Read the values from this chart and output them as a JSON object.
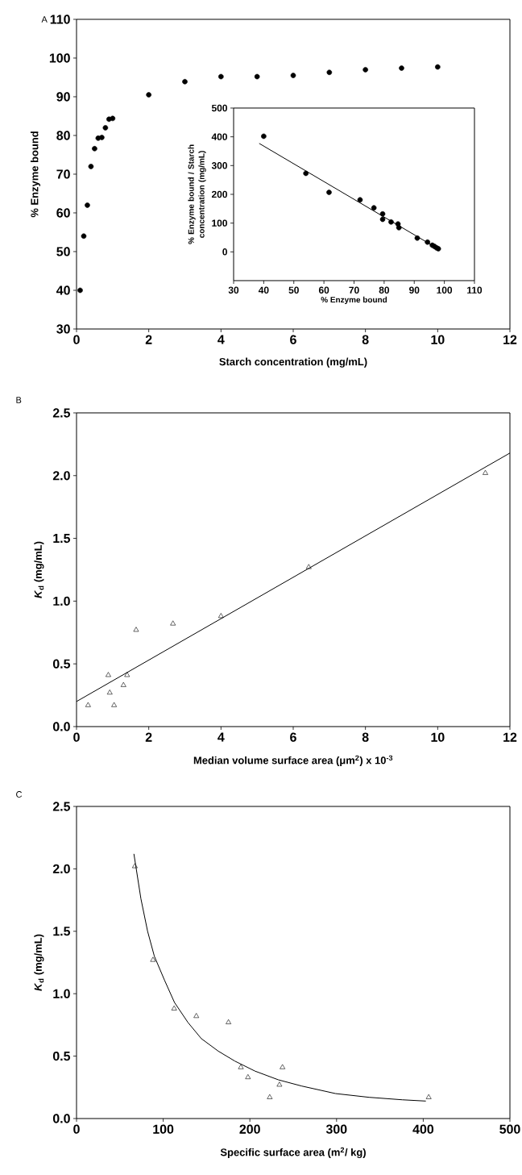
{
  "chart_data": [
    {
      "type": "scatter",
      "title": "A",
      "xlabel": "Starch concentration (mg/mL)",
      "ylabel": "% Enzyme bound",
      "xlim": [
        0,
        12
      ],
      "ylim": [
        30,
        110
      ],
      "xticks": [
        0,
        2,
        4,
        6,
        8,
        10,
        12
      ],
      "yticks": [
        30,
        40,
        50,
        60,
        70,
        80,
        90,
        100,
        110
      ],
      "series": [
        {
          "marker": "circle",
          "color": "#000000",
          "x": [
            0.1,
            0.2,
            0.3,
            0.4,
            0.5,
            0.6,
            0.7,
            0.8,
            0.9,
            1.0,
            2,
            3,
            4,
            5,
            6,
            7,
            8,
            9,
            10
          ],
          "values": [
            40,
            54,
            62,
            72,
            76.6,
            79.3,
            79.5,
            82,
            84.2,
            84.4,
            90.5,
            93.9,
            95.2,
            95.2,
            95.5,
            96.3,
            97,
            97.4,
            97.7
          ]
        }
      ]
    },
    {
      "type": "scatter",
      "xlabel": "% Enzyme bound",
      "ylabel": "% Enzyme bound / Starch concentration (mg/mL)",
      "xlim": [
        30,
        110
      ],
      "ylim": [
        -100,
        500
      ],
      "xticks": [
        30,
        40,
        50,
        60,
        70,
        80,
        90,
        100,
        110
      ],
      "yticks": [
        0,
        100,
        200,
        300,
        400,
        500
      ],
      "series": [
        {
          "marker": "circle",
          "color": "#000000",
          "x": [
            40,
            54,
            61.7,
            72,
            76.6,
            79.5,
            79.5,
            82.3,
            84.6,
            84.9,
            91,
            94.4,
            96,
            96.7,
            97.4,
            98
          ],
          "values": [
            402,
            273,
            207,
            181,
            153,
            132,
            113,
            104,
            97,
            84,
            48,
            34,
            23,
            19,
            14,
            11
          ]
        },
        {
          "type": "line",
          "color": "#000000",
          "x": [
            38.5,
            98.5
          ],
          "values": [
            377,
            7
          ]
        }
      ]
    },
    {
      "type": "scatter",
      "title": "B",
      "xlabel": "Median volume surface area (μm$^{2}$) x 10$^{-3}$",
      "ylabel": "*K*$_{d}$ (mg/mL)",
      "xlim": [
        0,
        12
      ],
      "ylim": [
        0,
        2.5
      ],
      "xticks": [
        0,
        2,
        4,
        6,
        8,
        10,
        12
      ],
      "yticks": [
        {
          "value": 0,
          "label": "0.0"
        },
        {
          "value": 0.5,
          "label": "0.5"
        },
        {
          "value": 1,
          "label": "1.0"
        },
        {
          "value": 1.5,
          "label": "1.5"
        },
        {
          "value": 2,
          "label": "2.0"
        },
        {
          "value": 2.5,
          "label": "2.5"
        }
      ],
      "series": [
        {
          "marker": "triangle",
          "color": "#000000",
          "x": [
            0.32,
            0.88,
            0.92,
            1.04,
            1.3,
            1.4,
            1.65,
            2.67,
            4.0,
            6.43,
            11.32
          ],
          "values": [
            0.17,
            0.41,
            0.27,
            0.17,
            0.33,
            0.41,
            0.77,
            0.82,
            0.88,
            1.27,
            2.02
          ]
        },
        {
          "type": "line",
          "color": "#000000",
          "x": [
            0,
            12
          ],
          "values": [
            0.2,
            2.18
          ]
        }
      ]
    },
    {
      "type": "scatter",
      "title": "C",
      "xlabel": "Specific surface area (m$^{2}$/ kg)",
      "ylabel": "*K*$_{d}$ (mg/mL)",
      "xlim": [
        0,
        500
      ],
      "ylim": [
        0,
        2.5
      ],
      "xticks": [
        0,
        100,
        200,
        300,
        400,
        500
      ],
      "yticks": [
        {
          "value": 0,
          "label": "0.0"
        },
        {
          "value": 0.5,
          "label": "0.5"
        },
        {
          "value": 1,
          "label": "1.0"
        },
        {
          "value": 1.5,
          "label": "1.5"
        },
        {
          "value": 2,
          "label": "2.0"
        },
        {
          "value": 2.5,
          "label": "2.5"
        }
      ],
      "series": [
        {
          "marker": "triangle",
          "color": "#000000",
          "x": [
            67.3,
            88.2,
            112.6,
            138.2,
            175.3,
            189.6,
            197.8,
            222.9,
            234.1,
            237.6,
            406.3
          ],
          "values": [
            2.02,
            1.27,
            0.88,
            0.82,
            0.77,
            0.41,
            0.33,
            0.17,
            0.27,
            0.41,
            0.17
          ]
        },
        {
          "type": "line",
          "color": "#000000",
          "x": [
            66.2,
            74.3,
            82,
            89.8,
            101.4,
            113,
            128.5,
            144,
            163.5,
            182.7,
            205.9,
            232.9,
            260,
            298.8,
            337.5,
            376,
            403
          ],
          "values": [
            2.12,
            1.76,
            1.5,
            1.3,
            1.11,
            0.93,
            0.77,
            0.64,
            0.54,
            0.46,
            0.38,
            0.31,
            0.26,
            0.2,
            0.17,
            0.15,
            0.14
          ]
        }
      ]
    }
  ]
}
